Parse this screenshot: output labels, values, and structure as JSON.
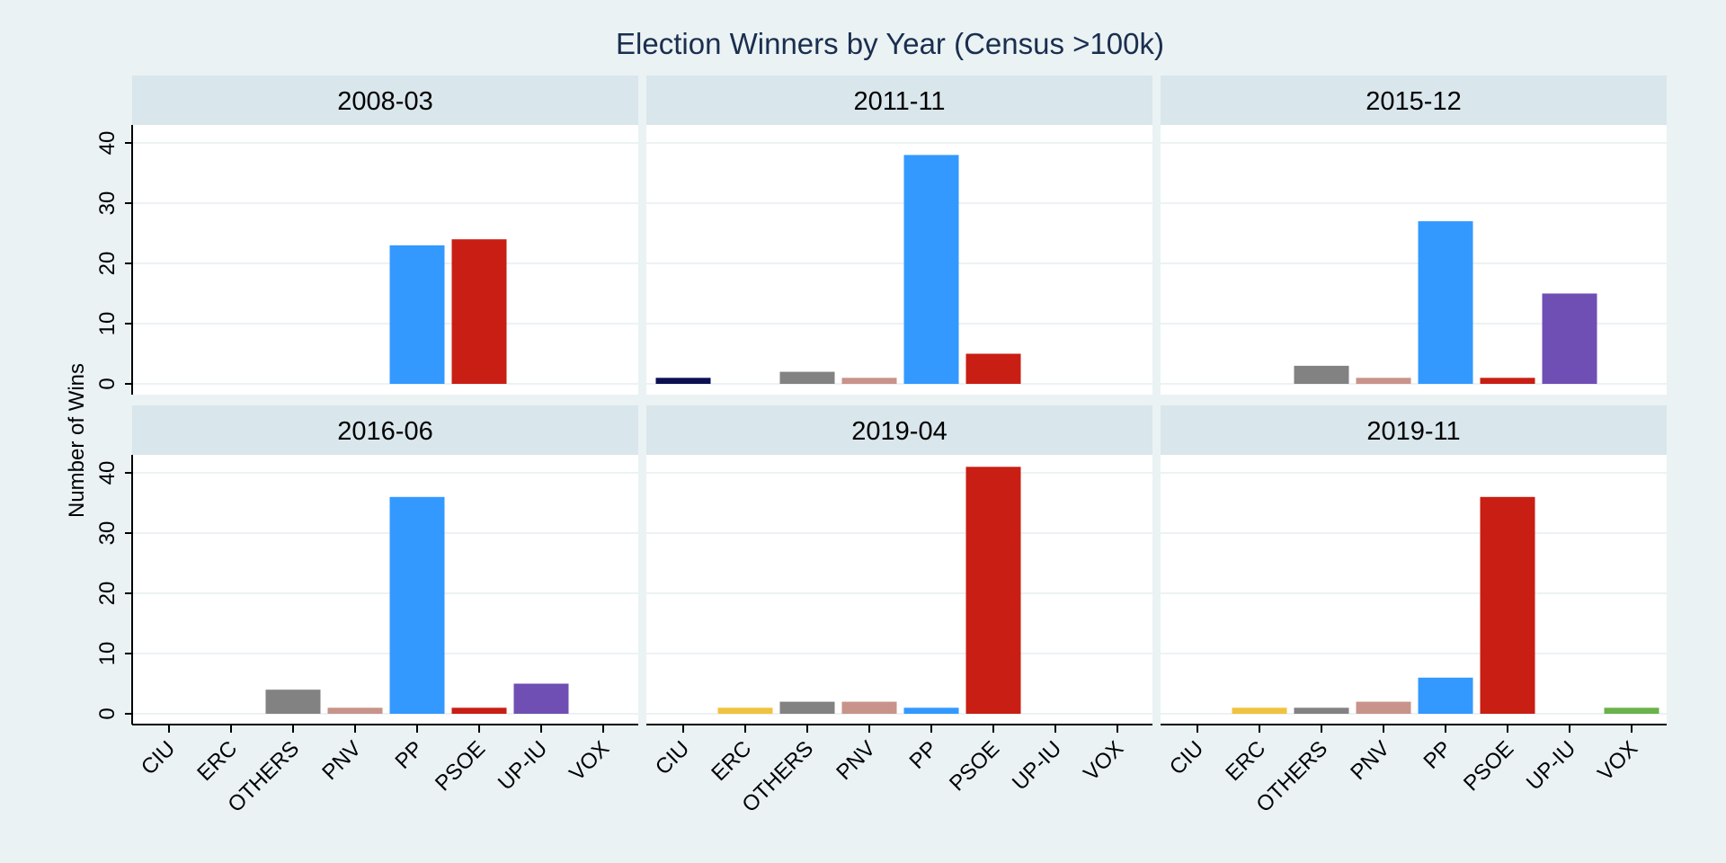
{
  "chart_data": {
    "type": "bar",
    "title": "Election Winners by Year (Census >100k)",
    "ylabel": "Number of Wins",
    "xlabel": "",
    "ylim": [
      0,
      42
    ],
    "yticks": [
      0,
      10,
      20,
      30,
      40
    ],
    "grid": true,
    "categories": [
      "CIU",
      "ERC",
      "OTHERS",
      "PNV",
      "PP",
      "PSOE",
      "UP-IU",
      "VOX"
    ],
    "colors": {
      "CIU": "#0c0f52",
      "ERC": "#f0c23e",
      "OTHERS": "#828282",
      "PNV": "#c8938a",
      "PP": "#3399ff",
      "PSOE": "#c81e14",
      "UP-IU": "#6f4fb4",
      "VOX": "#6ab24a"
    },
    "facets": [
      {
        "label": "2008-03",
        "values": [
          0,
          0,
          0,
          0,
          23,
          24,
          0,
          0
        ]
      },
      {
        "label": "2011-11",
        "values": [
          1,
          0,
          2,
          1,
          38,
          5,
          0,
          0
        ]
      },
      {
        "label": "2015-12",
        "values": [
          0,
          0,
          3,
          1,
          27,
          1,
          15,
          0
        ]
      },
      {
        "label": "2016-06",
        "values": [
          0,
          0,
          4,
          1,
          36,
          1,
          5,
          0
        ]
      },
      {
        "label": "2019-04",
        "values": [
          0,
          1,
          2,
          2,
          1,
          41,
          0,
          0
        ]
      },
      {
        "label": "2019-11",
        "values": [
          0,
          1,
          1,
          2,
          6,
          36,
          0,
          1
        ]
      }
    ]
  }
}
